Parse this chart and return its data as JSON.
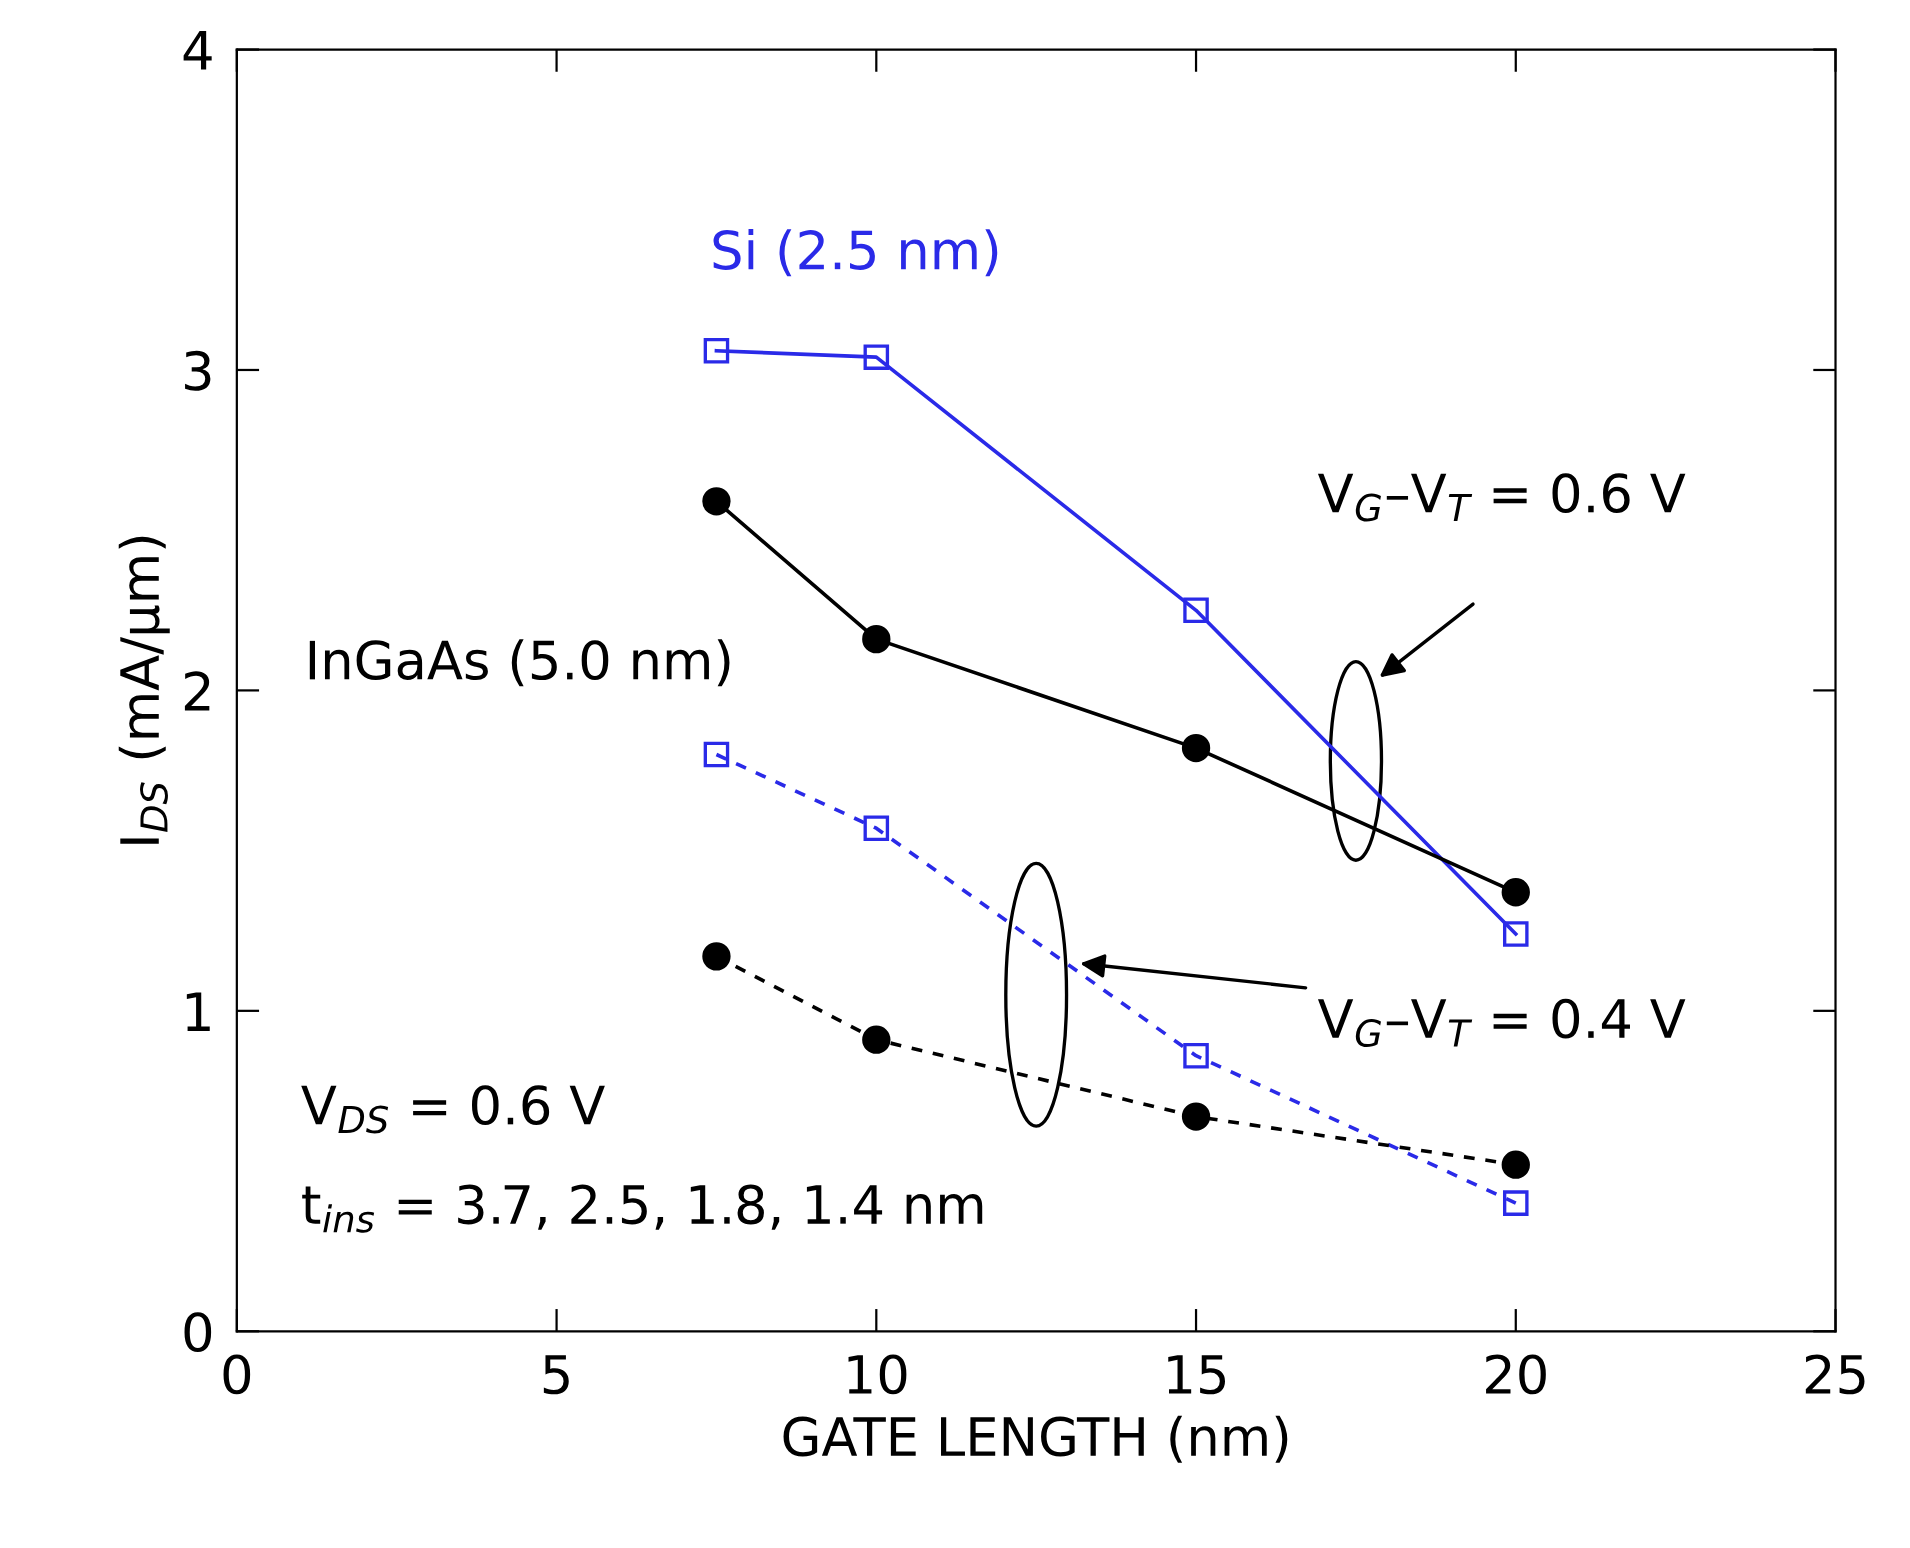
{
  "chart_data": {
    "type": "line",
    "xlabel": "GATE LENGTH (nm)",
    "ylabel": "I$_{DS}$ (mA/µm)",
    "xlim": [
      0,
      25
    ],
    "xticks": [
      0,
      5,
      10,
      15,
      20,
      25
    ],
    "ylim": [
      0,
      4
    ],
    "yticks": [
      0,
      1,
      2,
      3,
      4
    ],
    "grid": false,
    "series": [
      {
        "color": "#2a2ae8",
        "marker": "square",
        "line_style": "solid",
        "x": [
          7.5,
          10,
          15,
          20
        ],
        "values": [
          3.06,
          3.04,
          2.25,
          1.24
        ]
      },
      {
        "color": "#000000",
        "marker": "circle",
        "line_style": "solid",
        "x": [
          7.5,
          10,
          15,
          20
        ],
        "values": [
          2.59,
          2.16,
          1.82,
          1.37
        ]
      },
      {
        "color": "#2a2ae8",
        "marker": "square",
        "line_style": "dashed",
        "x": [
          7.5,
          10,
          15,
          20
        ],
        "values": [
          1.8,
          1.57,
          0.86,
          0.4
        ]
      },
      {
        "color": "#000000",
        "marker": "circle",
        "line_style": "dashed",
        "x": [
          7.5,
          10,
          15,
          20
        ],
        "values": [
          1.17,
          0.91,
          0.67,
          0.52
        ]
      }
    ],
    "annotations": [
      "Si (2.5 nm)",
      "InGaAs (5.0 nm)",
      "V$_{G}$–V$_{T}$ = 0.6 V",
      "V$_{G}$–V$_{T}$ = 0.4 V",
      "V$_{DS}$ = 0.6 V",
      "t$_{ins}$ = 3.7, 2.5, 1.8, 1.4 nm"
    ]
  }
}
